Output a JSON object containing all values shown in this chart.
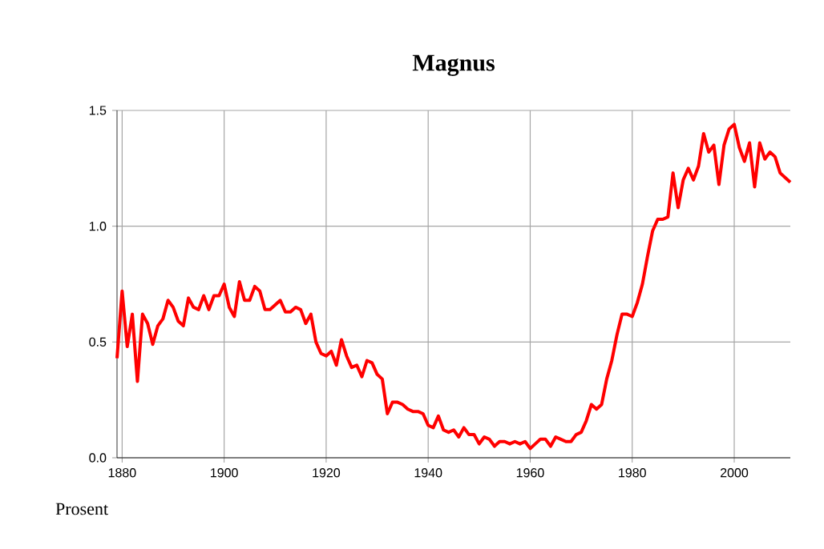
{
  "chart_data": {
    "type": "line",
    "title": "Magnus",
    "annotations": [
      "Prosent"
    ],
    "x": [
      1879,
      1880,
      1881,
      1882,
      1883,
      1884,
      1885,
      1886,
      1887,
      1888,
      1889,
      1890,
      1891,
      1892,
      1893,
      1894,
      1895,
      1896,
      1897,
      1898,
      1899,
      1900,
      1901,
      1902,
      1903,
      1904,
      1905,
      1906,
      1907,
      1908,
      1909,
      1910,
      1911,
      1912,
      1913,
      1914,
      1915,
      1916,
      1917,
      1918,
      1919,
      1920,
      1921,
      1922,
      1923,
      1924,
      1925,
      1926,
      1927,
      1928,
      1929,
      1930,
      1931,
      1932,
      1933,
      1934,
      1935,
      1936,
      1937,
      1938,
      1939,
      1940,
      1941,
      1942,
      1943,
      1944,
      1945,
      1946,
      1947,
      1948,
      1949,
      1950,
      1951,
      1952,
      1953,
      1954,
      1955,
      1956,
      1957,
      1958,
      1959,
      1960,
      1961,
      1962,
      1963,
      1964,
      1965,
      1966,
      1967,
      1968,
      1969,
      1970,
      1971,
      1972,
      1973,
      1974,
      1975,
      1976,
      1977,
      1978,
      1979,
      1980,
      1981,
      1982,
      1983,
      1984,
      1985,
      1986,
      1987,
      1988,
      1989,
      1990,
      1991,
      1992,
      1993,
      1994,
      1995,
      1996,
      1997,
      1998,
      1999,
      2000,
      2001,
      2002,
      2003,
      2004,
      2005,
      2006,
      2007,
      2008,
      2009,
      2010,
      2011
    ],
    "series": [
      {
        "color": "#ff0000",
        "values": [
          0.43,
          0.72,
          0.48,
          0.62,
          0.33,
          0.62,
          0.58,
          0.49,
          0.57,
          0.6,
          0.68,
          0.65,
          0.59,
          0.57,
          0.69,
          0.65,
          0.64,
          0.7,
          0.64,
          0.7,
          0.7,
          0.75,
          0.65,
          0.61,
          0.76,
          0.68,
          0.68,
          0.74,
          0.72,
          0.64,
          0.64,
          0.66,
          0.68,
          0.63,
          0.63,
          0.65,
          0.64,
          0.58,
          0.62,
          0.5,
          0.45,
          0.44,
          0.46,
          0.4,
          0.51,
          0.44,
          0.39,
          0.4,
          0.35,
          0.42,
          0.41,
          0.36,
          0.34,
          0.19,
          0.24,
          0.24,
          0.23,
          0.21,
          0.2,
          0.2,
          0.19,
          0.14,
          0.13,
          0.18,
          0.12,
          0.11,
          0.12,
          0.09,
          0.13,
          0.1,
          0.1,
          0.06,
          0.09,
          0.08,
          0.05,
          0.07,
          0.07,
          0.06,
          0.07,
          0.06,
          0.07,
          0.04,
          0.06,
          0.08,
          0.08,
          0.05,
          0.09,
          0.08,
          0.07,
          0.07,
          0.1,
          0.11,
          0.16,
          0.23,
          0.21,
          0.23,
          0.34,
          0.42,
          0.53,
          0.62,
          0.62,
          0.61,
          0.67,
          0.75,
          0.87,
          0.98,
          1.03,
          1.03,
          1.04,
          1.23,
          1.08,
          1.2,
          1.25,
          1.2,
          1.26,
          1.4,
          1.32,
          1.35,
          1.18,
          1.35,
          1.42,
          1.44,
          1.34,
          1.28,
          1.36,
          1.17,
          1.36,
          1.29,
          1.32,
          1.3,
          1.23,
          1.21,
          1.19
        ]
      }
    ],
    "xlim": [
      1879,
      2011
    ],
    "ylim": [
      0,
      1.5
    ],
    "xticks": [
      1880,
      1900,
      1920,
      1940,
      1960,
      1980,
      2000
    ],
    "yticks": [
      {
        "value": 0,
        "label": "0.0"
      },
      {
        "value": 0.5,
        "label": "0.5"
      },
      {
        "value": 1,
        "label": "1.0"
      },
      {
        "value": 1.5,
        "label": "1.5"
      }
    ],
    "grid": true,
    "line_style": "solid",
    "marker": "none",
    "legend": false
  }
}
